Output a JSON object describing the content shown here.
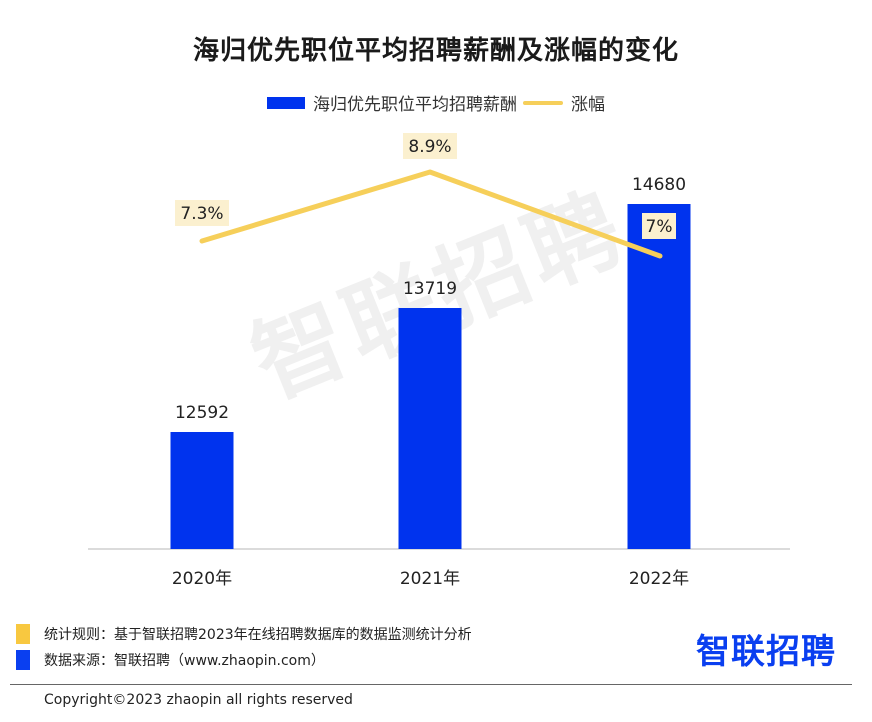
{
  "title": "海归优先职位平均招聘薪酬及涨幅的变化",
  "legend": {
    "bar_label": "海归优先职位平均招聘薪酬",
    "line_label": "涨幅"
  },
  "watermark": "智联招聘",
  "colors": {
    "bar": "#0033ee",
    "line": "#f6cf5a",
    "label_bg": "#fbf0cf"
  },
  "chart_data": {
    "type": "bar",
    "title": "海归优先职位平均招聘薪酬及涨幅的变化",
    "categories": [
      "2020年",
      "2021年",
      "2022年"
    ],
    "series": [
      {
        "name": "海归优先职位平均招聘薪酬",
        "type": "bar",
        "values": [
          12592,
          13719,
          14680
        ],
        "labels": [
          "12592",
          "13719",
          "14680"
        ]
      },
      {
        "name": "涨幅",
        "type": "line",
        "values": [
          7.3,
          8.9,
          7.0
        ],
        "labels": [
          "7.3%",
          "8.9%",
          "7%"
        ]
      }
    ],
    "xlabel": "",
    "ylabel": "",
    "grid": false,
    "legend_position": "top"
  },
  "footer": {
    "rule": "统计规则：基于智联招聘2023年在线招聘数据库的数据监测统计分析",
    "source": "数据来源：智联招聘（www.zhaopin.com）",
    "logo": "智联招聘",
    "copyright": "Copyright©2023 zhaopin all rights reserved"
  }
}
